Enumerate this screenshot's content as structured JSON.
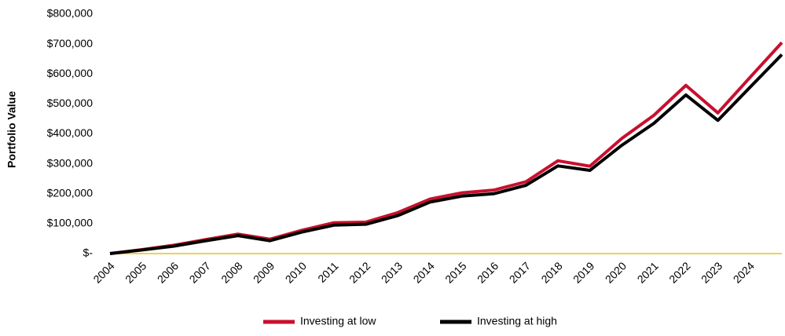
{
  "chart_data": {
    "type": "line",
    "y_label": "Portfolio Value",
    "categories": [
      "2004",
      "2005",
      "2006",
      "2007",
      "2008",
      "2009",
      "2010",
      "2011",
      "2012",
      "2013",
      "2014",
      "2015",
      "2016",
      "2017",
      "2018",
      "2019",
      "2020",
      "2021",
      "2022",
      "2023",
      "2024",
      null
    ],
    "series": [
      {
        "name": "Investing at low",
        "color": "#c8102e",
        "values": [
          0,
          13000,
          28000,
          47000,
          65000,
          48000,
          78000,
          103000,
          105000,
          137000,
          182000,
          203000,
          212000,
          240000,
          310000,
          292000,
          385000,
          462000,
          562000,
          470000,
          588000,
          705000
        ]
      },
      {
        "name": "Investing at high",
        "color": "#000000",
        "values": [
          0,
          12000,
          25000,
          43000,
          60000,
          43000,
          72000,
          95000,
          98000,
          127000,
          172000,
          192000,
          200000,
          228000,
          293000,
          278000,
          362000,
          435000,
          530000,
          445000,
          555000,
          665000
        ]
      }
    ],
    "ylim": [
      0,
      800000
    ],
    "yticks": [
      {
        "value": 0,
        "label": "$-"
      },
      {
        "value": 100000,
        "label": "$100,000"
      },
      {
        "value": 200000,
        "label": "$200,000"
      },
      {
        "value": 300000,
        "label": "$300,000"
      },
      {
        "value": 400000,
        "label": "$400,000"
      },
      {
        "value": 500000,
        "label": "$500,000"
      },
      {
        "value": 600000,
        "label": "$600,000"
      },
      {
        "value": 700000,
        "label": "$700,000"
      },
      {
        "value": 800000,
        "label": "$800,000"
      }
    ],
    "baseline_color": "#e8c21a",
    "grid": false,
    "legend": "bottom"
  }
}
